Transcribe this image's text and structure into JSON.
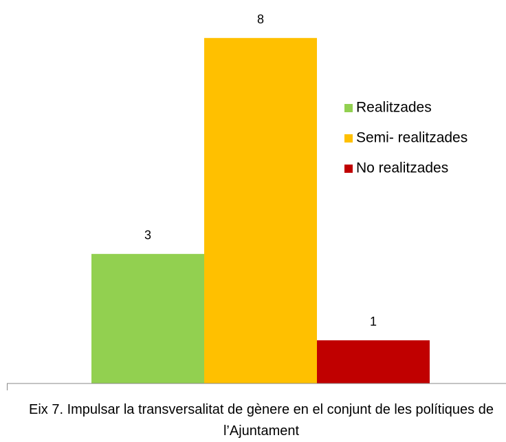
{
  "chart_data": {
    "type": "bar",
    "categories": [
      "Eix 7. Impulsar la transversalitat de gènere en el conjunt de les polítiques de l’Ajuntament"
    ],
    "series": [
      {
        "name": "Realitzades",
        "color": "#92d050",
        "values": [
          3
        ]
      },
      {
        "name": "Semi- realitzades",
        "color": "#ffc000",
        "values": [
          8
        ]
      },
      {
        "name": "No realitzades",
        "color": "#c00000",
        "values": [
          1
        ]
      }
    ],
    "ylim": [
      0,
      8.8
    ],
    "legend": "right"
  }
}
